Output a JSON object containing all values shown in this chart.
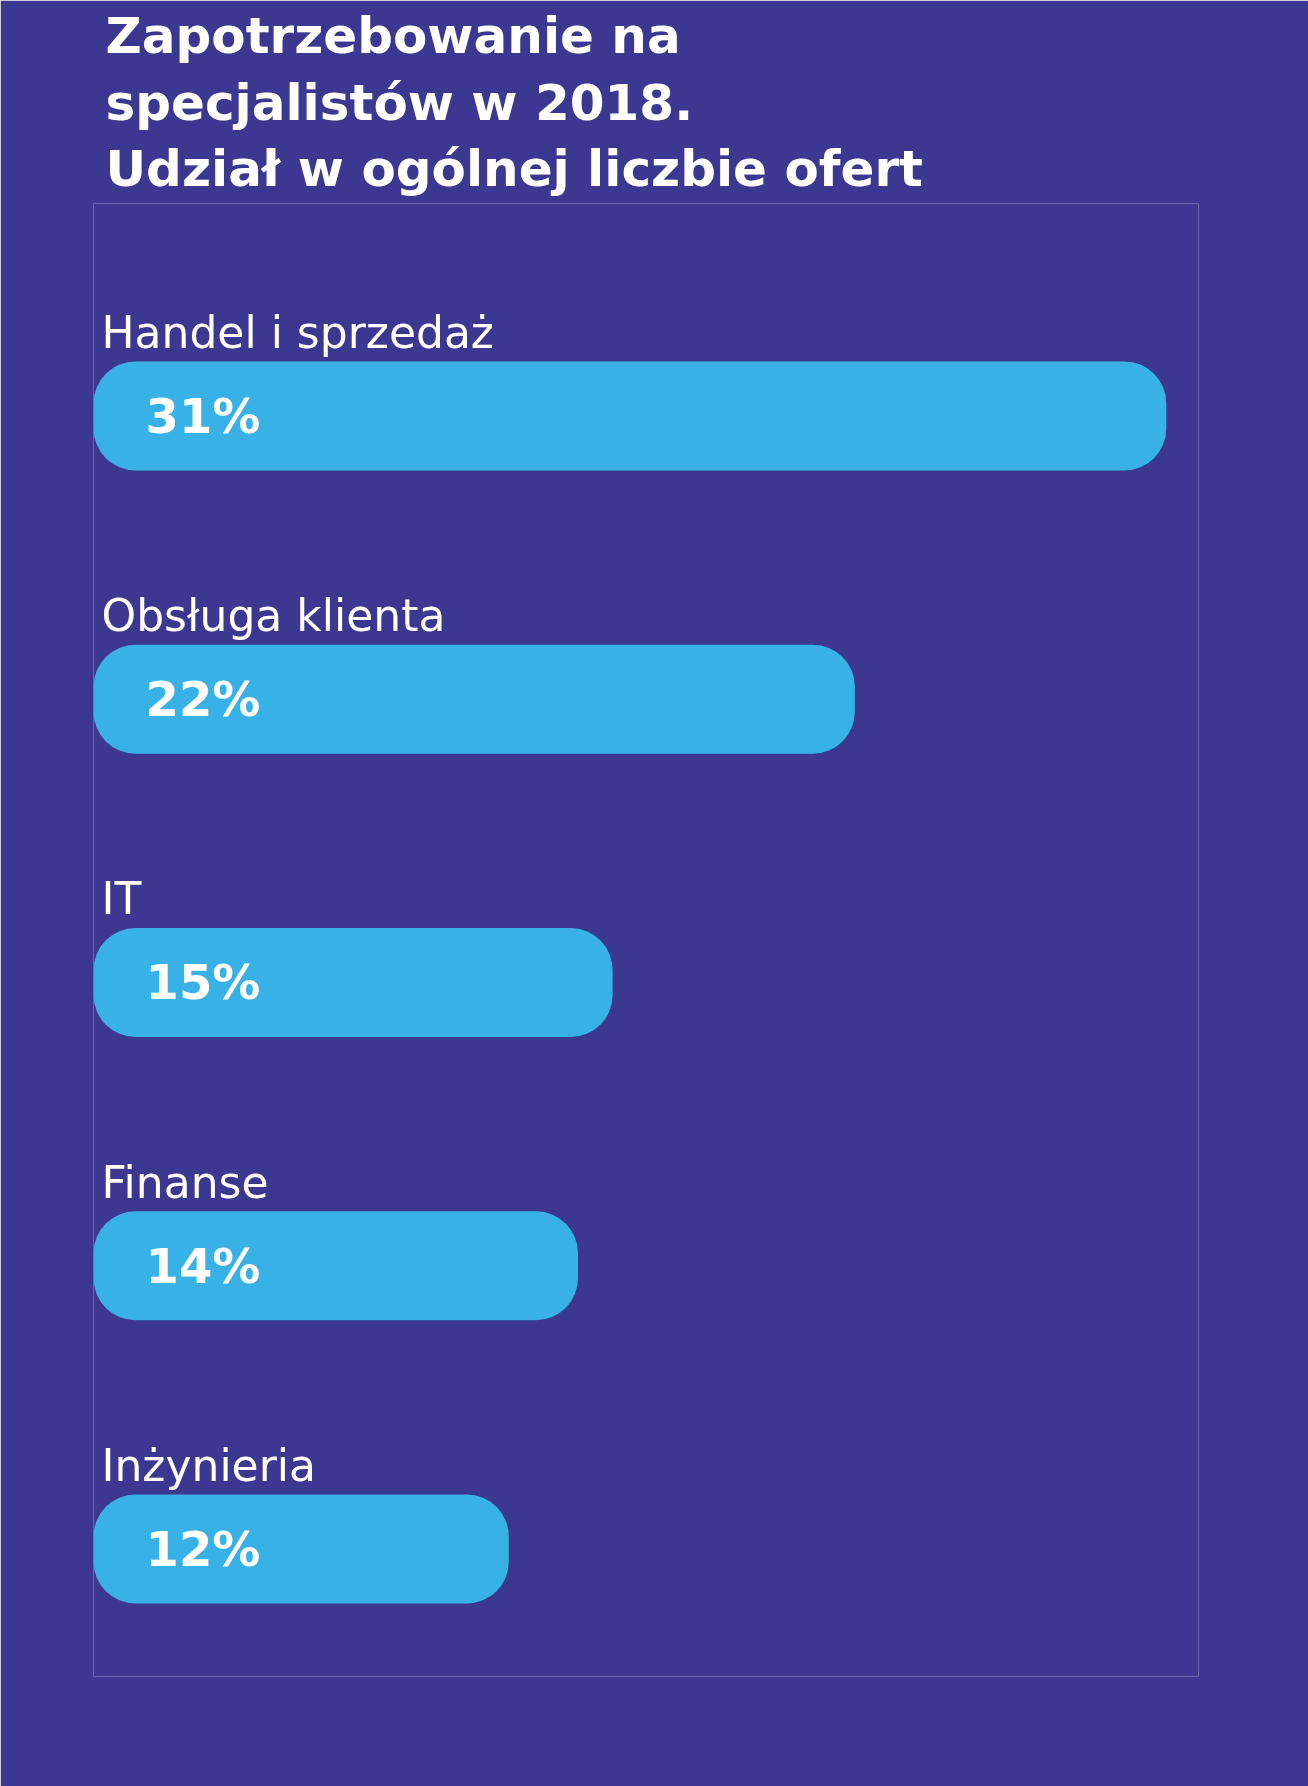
{
  "chart_data": {
    "type": "bar",
    "orientation": "horizontal",
    "title": "Zapotrzebowanie na\nspecjalistów w 2018.\nUdział w ogólnej liczbie ofert",
    "categories": [
      "Handel i sprzedaż",
      "Obsługa klienta",
      "IT",
      "Finanse",
      "Inżynieria"
    ],
    "values": [
      31,
      22,
      15,
      14,
      12
    ],
    "color": "#38b2e6",
    "value_labels": [
      "31%",
      "22%",
      "15%",
      "14%",
      "12%"
    ]
  }
}
